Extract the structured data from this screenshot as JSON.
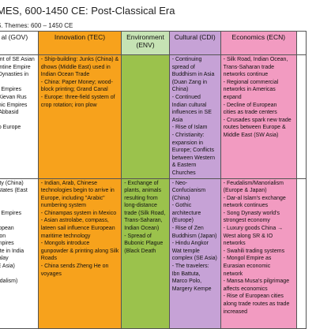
{
  "title": "MES, 600-1450 CE: Post-Classical Era",
  "subtitle": "S. Themes: 600 – 1450 CE",
  "headers": {
    "gov": "al (GOV)",
    "tec": "Innovation (TEC)",
    "env_line1": "Environment",
    "env_line2": "(ENV)",
    "cdi": "Cultural (CDI)",
    "ecn": "Economics (ECN)"
  },
  "row1": {
    "gov": [
      "nent of SE Asian",
      "zantine Empire",
      "g Dynasties in",
      "",
      "ca Empires",
      "e Kievan Rus",
      "omic Empires",
      "& Abbasid",
      "",
      "nto Europe",
      "",
      ""
    ],
    "tec": [
      "- Ship-building: Junks (China) &",
      "  dhows (Middle East) used in",
      "  Indian Ocean Trade",
      "- China: Paper Money; wood-",
      "  block printing; Grand Canal",
      "- Europe: three-field system of",
      "  crop rotation; iron plow"
    ],
    "env": [],
    "cdi": [
      "- Continuing",
      "  spread of",
      "  Buddhism in Asia",
      "  (Duan Zang in",
      "  China)",
      "- Continued",
      "  Indian cultural",
      "  influences in SE",
      "  Asia",
      "- Rise of Islam",
      "- Christianity:",
      "  expansion in",
      "  Europe; Conflicts",
      "  between Western",
      "  & Eastern",
      "  Churches"
    ],
    "ecn": [
      "- Silk Road, Indian Ocean,",
      "  Trans-Saharan trade",
      "  networks continue",
      "- Regional commercial",
      "  networks in Americas",
      "  expand",
      "- Decline of European",
      "  cities as trade centers",
      "- Crusades spark new trade",
      "  routes between Europe &",
      "  Middle East (SW Asia)"
    ]
  },
  "row2": {
    "gov": [
      "asty (China)",
      "y-states (East",
      "",
      "",
      "ca Empires",
      "",
      "uropean",
      "ation",
      "Empires",
      "nate in India",
      "Malay",
      "SE Asia)",
      "",
      "eudalism)",
      ""
    ],
    "tec": [
      "- Indian, Arab, Chinese",
      "  technologies begin to arrive in",
      "  Europe, including \"Arabic\"",
      "  numbering system",
      "- Chinampas system in Mexico",
      "- Asian astrolabe, compass,",
      "  lateen sail influence European",
      "  maritime technology",
      "- Mongols introduce",
      "  gunpowder & printing along Silk",
      "  Roads",
      "- China sends Zheng He on",
      "  voyages"
    ],
    "env": [
      "- Exchange of",
      "  plants, animals",
      "  resulting from",
      "  long-distance",
      "  trade (Silk Road,",
      "  Trans-Saharan,",
      "  Indian Ocean)",
      "- Spread of",
      "  Bubonic Plague",
      "  (Black Death"
    ],
    "cdi": [
      "- Neo-",
      "  Confucianism",
      "  (China)",
      "- Gothic",
      "  architecture",
      "  (Europe)",
      "- Rise of Zen",
      "  Buddhism (Japan)",
      "- Hindu Angkor",
      "  Wat temple",
      "  complex (SE Asia)",
      "- The travelers:",
      "  Ibn Battuta,",
      "  Marco Polo,",
      "  Margery Kempe"
    ],
    "ecn": [
      "- Feudalism/Manorialism",
      "  (Europe & Japan)",
      "- Dar-al Islam's exchange",
      "  network continues",
      "- Song Dynasty world's",
      "  strongest economy",
      "- Luxury goods China →",
      "  West along SR & IO",
      "  networks",
      "- Swahili trading systems",
      "- Mongol Empire as",
      "  Eurasian economic",
      "  network",
      "- Mansa Musa's pilgrimage",
      "  affects economics",
      "- Rise of European cities",
      "  along trade routes as trade",
      "  increased"
    ]
  }
}
